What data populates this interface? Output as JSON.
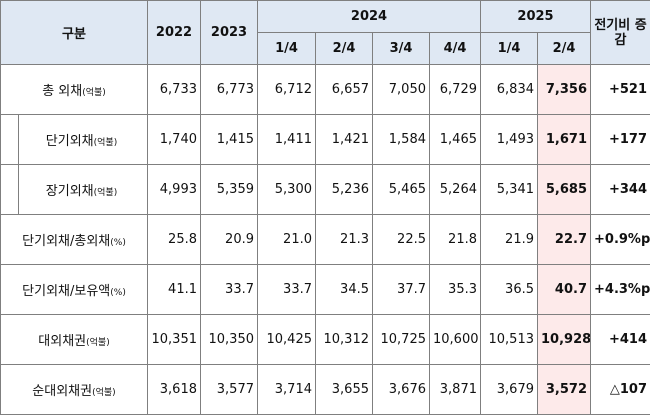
{
  "header": {
    "category": "구분",
    "years": [
      "2022",
      "2023",
      "2024",
      "2025"
    ],
    "quarters_2024": [
      "1/4",
      "2/4",
      "3/4",
      "4/4"
    ],
    "quarters_2025": [
      "1/4",
      "2/4"
    ],
    "change": "전기비 증감"
  },
  "table": {
    "rows": [
      {
        "label": "총 외채",
        "unit": "(억불)",
        "values": [
          "6,733",
          "6,773",
          "6,712",
          "6,657",
          "7,050",
          "6,729",
          "6,834",
          "7,356"
        ],
        "change": "+521"
      },
      {
        "label": "단기외채",
        "unit": "(억불)",
        "values": [
          "1,740",
          "1,415",
          "1,411",
          "1,421",
          "1,584",
          "1,465",
          "1,493",
          "1,671"
        ],
        "change": "+177"
      },
      {
        "label": "장기외채",
        "unit": "(억불)",
        "values": [
          "4,993",
          "5,359",
          "5,300",
          "5,236",
          "5,465",
          "5,264",
          "5,341",
          "5,685"
        ],
        "change": "+344"
      },
      {
        "label": "단기외채/총외채",
        "unit": "(%)",
        "values": [
          "25.8",
          "20.9",
          "21.0",
          "21.3",
          "22.5",
          "21.8",
          "21.9",
          "22.7"
        ],
        "change": "+0.9%p"
      },
      {
        "label": "단기외채/보유액",
        "unit": "(%)",
        "values": [
          "41.1",
          "33.7",
          "33.7",
          "34.5",
          "37.7",
          "35.3",
          "36.5",
          "40.7"
        ],
        "change": "+4.3%p"
      },
      {
        "label": "대외채권",
        "unit": "(억불)",
        "values": [
          "10,351",
          "10,350",
          "10,425",
          "10,312",
          "10,725",
          "10,600",
          "10,513",
          "10,928"
        ],
        "change": "+414"
      },
      {
        "label": "순대외채권",
        "unit": "(억불)",
        "values": [
          "3,618",
          "3,577",
          "3,714",
          "3,655",
          "3,676",
          "3,871",
          "3,679",
          "3,572"
        ],
        "change": "△107"
      }
    ]
  }
}
